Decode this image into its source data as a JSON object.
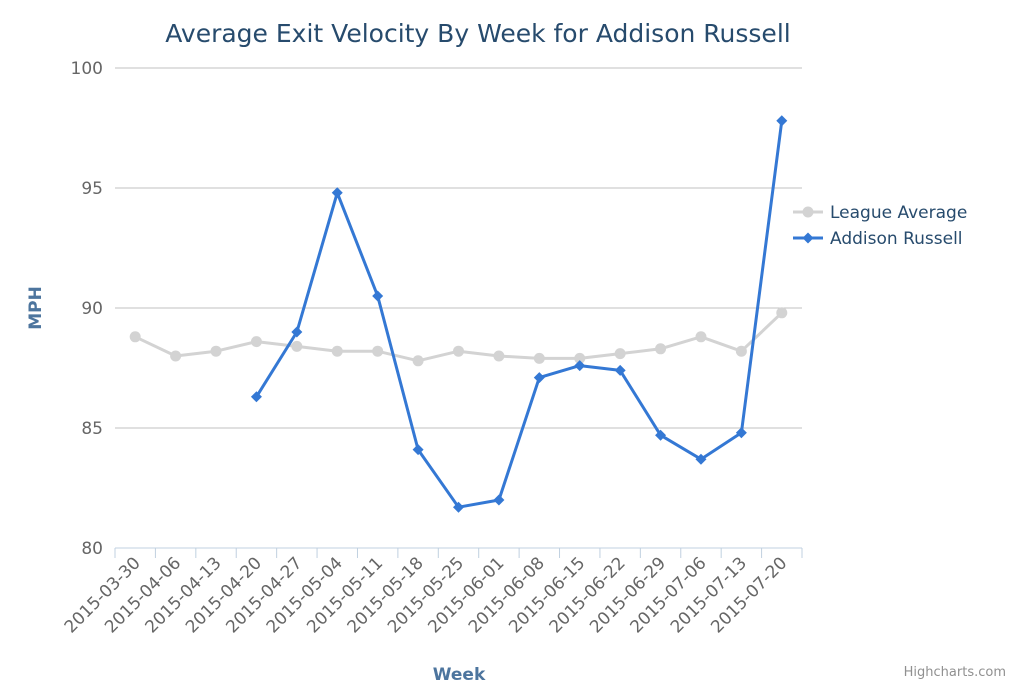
{
  "chart_data": {
    "type": "line",
    "title": "Average Exit Velocity By Week for Addison Russell",
    "xlabel": "Week",
    "ylabel": "MPH",
    "ylim": [
      80,
      100
    ],
    "yticks": [
      80,
      85,
      90,
      95,
      100
    ],
    "grid": true,
    "legend_position": "right",
    "categories": [
      "2015-03-30",
      "2015-04-06",
      "2015-04-13",
      "2015-04-20",
      "2015-04-27",
      "2015-05-04",
      "2015-05-11",
      "2015-05-18",
      "2015-05-25",
      "2015-06-01",
      "2015-06-08",
      "2015-06-15",
      "2015-06-22",
      "2015-06-29",
      "2015-07-06",
      "2015-07-13",
      "2015-07-20"
    ],
    "series": [
      {
        "name": "League Average",
        "color": "#d3d3d3",
        "marker": "circle",
        "values": [
          88.8,
          88.0,
          88.2,
          88.6,
          88.4,
          88.2,
          88.2,
          87.8,
          88.2,
          88.0,
          87.9,
          87.9,
          88.1,
          88.3,
          88.8,
          88.2,
          89.8
        ]
      },
      {
        "name": "Addison Russell",
        "color": "#3478d4",
        "marker": "diamond",
        "values": [
          null,
          null,
          null,
          86.3,
          89.0,
          94.8,
          90.5,
          84.1,
          81.7,
          82.0,
          87.1,
          87.6,
          87.4,
          84.7,
          83.7,
          84.8,
          97.8
        ]
      }
    ]
  },
  "credits": "Highcharts.com"
}
